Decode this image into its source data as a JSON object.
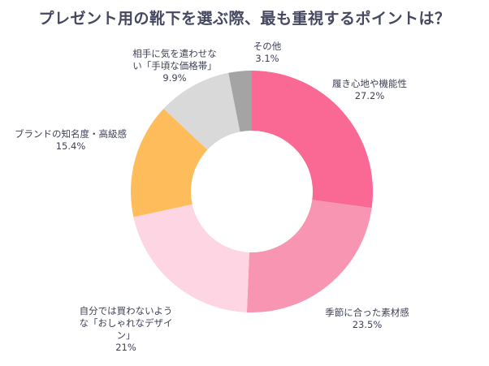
{
  "chart_data": {
    "type": "pie",
    "donut": true,
    "title": "プレゼント用の靴下を選ぶ際、最も重視するポイントは？",
    "slices": [
      {
        "label": "履き心地や機能性",
        "value": 27.2,
        "value_label": "27.2%",
        "color": "#FA6894"
      },
      {
        "label": "季節に合った素材感",
        "value": 23.5,
        "value_label": "23.5%",
        "color": "#F795B2"
      },
      {
        "label": "自分では買わないような「おしゃれなデザイン」",
        "value": 21,
        "value_label": "21%",
        "color": "#FDD5E3"
      },
      {
        "label": "ブランドの知名度・高級感",
        "value": 15.4,
        "value_label": "15.4%",
        "color": "#FEBC5A"
      },
      {
        "label": "相手に気を遣わせない「手頃な価格帯」",
        "value": 9.9,
        "value_label": "9.9%",
        "color": "#D9D9D9"
      },
      {
        "label": "その他",
        "value": 3.1,
        "value_label": "3.1%",
        "color": "#A4A4A4"
      }
    ],
    "start_angle": "12 o'clock",
    "direction": "clockwise"
  },
  "labels_display": [
    [
      "履き心地や機能性"
    ],
    [
      "季節に合った素材感"
    ],
    [
      "自分では買わないよう",
      "な「おしゃれなデザイ",
      "ン」"
    ],
    [
      "ブランドの知名度・高級感"
    ],
    [
      "相手に気を遣わせな",
      "い「手頃な価格帯」"
    ],
    [
      "その他"
    ]
  ]
}
